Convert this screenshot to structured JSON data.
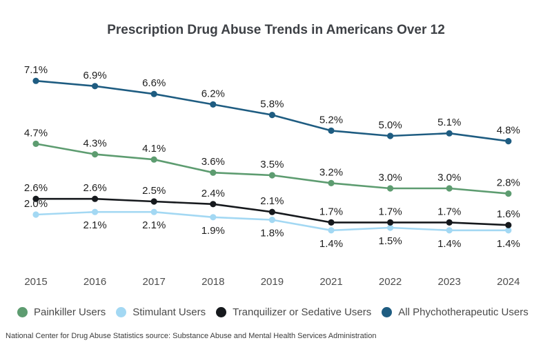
{
  "page": {
    "title": "Prescription Drug Abuse Trends in Americans Over 12",
    "footer": "National Center for Drug Abuse Statistics source: Substance Abuse and Mental Health Services Administration"
  },
  "chart_data": {
    "type": "line",
    "title": "Prescription Drug Abuse Trends in Americans Over 12",
    "categories": [
      "2015",
      "2016",
      "2017",
      "2018",
      "2019",
      "2021",
      "2022",
      "2023",
      "2024"
    ],
    "unit": "%",
    "ylim": [
      0,
      8
    ],
    "grid": false,
    "axes_shown": false,
    "legend_position": "bottom",
    "data_labels": true,
    "series": [
      {
        "name": "Painkiller Users",
        "color": "#5d9c70",
        "values": [
          4.7,
          4.3,
          4.1,
          3.6,
          3.5,
          3.2,
          3.0,
          3.0,
          2.8
        ],
        "labels": [
          "4.7%",
          "4.3%",
          "4.1%",
          "3.6%",
          "3.5%",
          "3.2%",
          "3.0%",
          "3.0%",
          "2.8%"
        ],
        "label_placement": [
          "above",
          "above",
          "above",
          "above",
          "above",
          "above",
          "above",
          "above",
          "above"
        ]
      },
      {
        "name": "Stimulant Users",
        "color": "#a3d8f3",
        "values": [
          2.0,
          2.1,
          2.1,
          1.9,
          1.8,
          1.4,
          1.5,
          1.4,
          1.4
        ],
        "labels": [
          "2.0%",
          "2.1%",
          "2.1%",
          "1.9%",
          "1.8%",
          "1.4%",
          "1.5%",
          "1.4%",
          "1.4%"
        ],
        "label_placement": [
          "above",
          "below",
          "below",
          "below",
          "below",
          "below",
          "below",
          "below",
          "below"
        ]
      },
      {
        "name": "Tranquilizer or Sedative Users",
        "color": "#16191d",
        "values": [
          2.6,
          2.6,
          2.5,
          2.4,
          2.1,
          1.7,
          1.7,
          1.7,
          1.6
        ],
        "labels": [
          "2.6%",
          "2.6%",
          "2.5%",
          "2.4%",
          "2.1%",
          "1.7%",
          "1.7%",
          "1.7%",
          "1.6%"
        ],
        "label_placement": [
          "above",
          "above",
          "above",
          "above",
          "above",
          "above",
          "above",
          "above",
          "above"
        ]
      },
      {
        "name": "All Phychotherapeutic Users",
        "color": "#1e5c81",
        "values": [
          7.1,
          6.9,
          6.6,
          6.2,
          5.8,
          5.2,
          5.0,
          5.1,
          4.8
        ],
        "labels": [
          "7.1%",
          "6.9%",
          "6.6%",
          "6.2%",
          "5.8%",
          "5.2%",
          "5.0%",
          "5.1%",
          "4.8%"
        ],
        "label_placement": [
          "above",
          "above",
          "above",
          "above",
          "above",
          "above",
          "above",
          "above",
          "above"
        ]
      }
    ]
  }
}
